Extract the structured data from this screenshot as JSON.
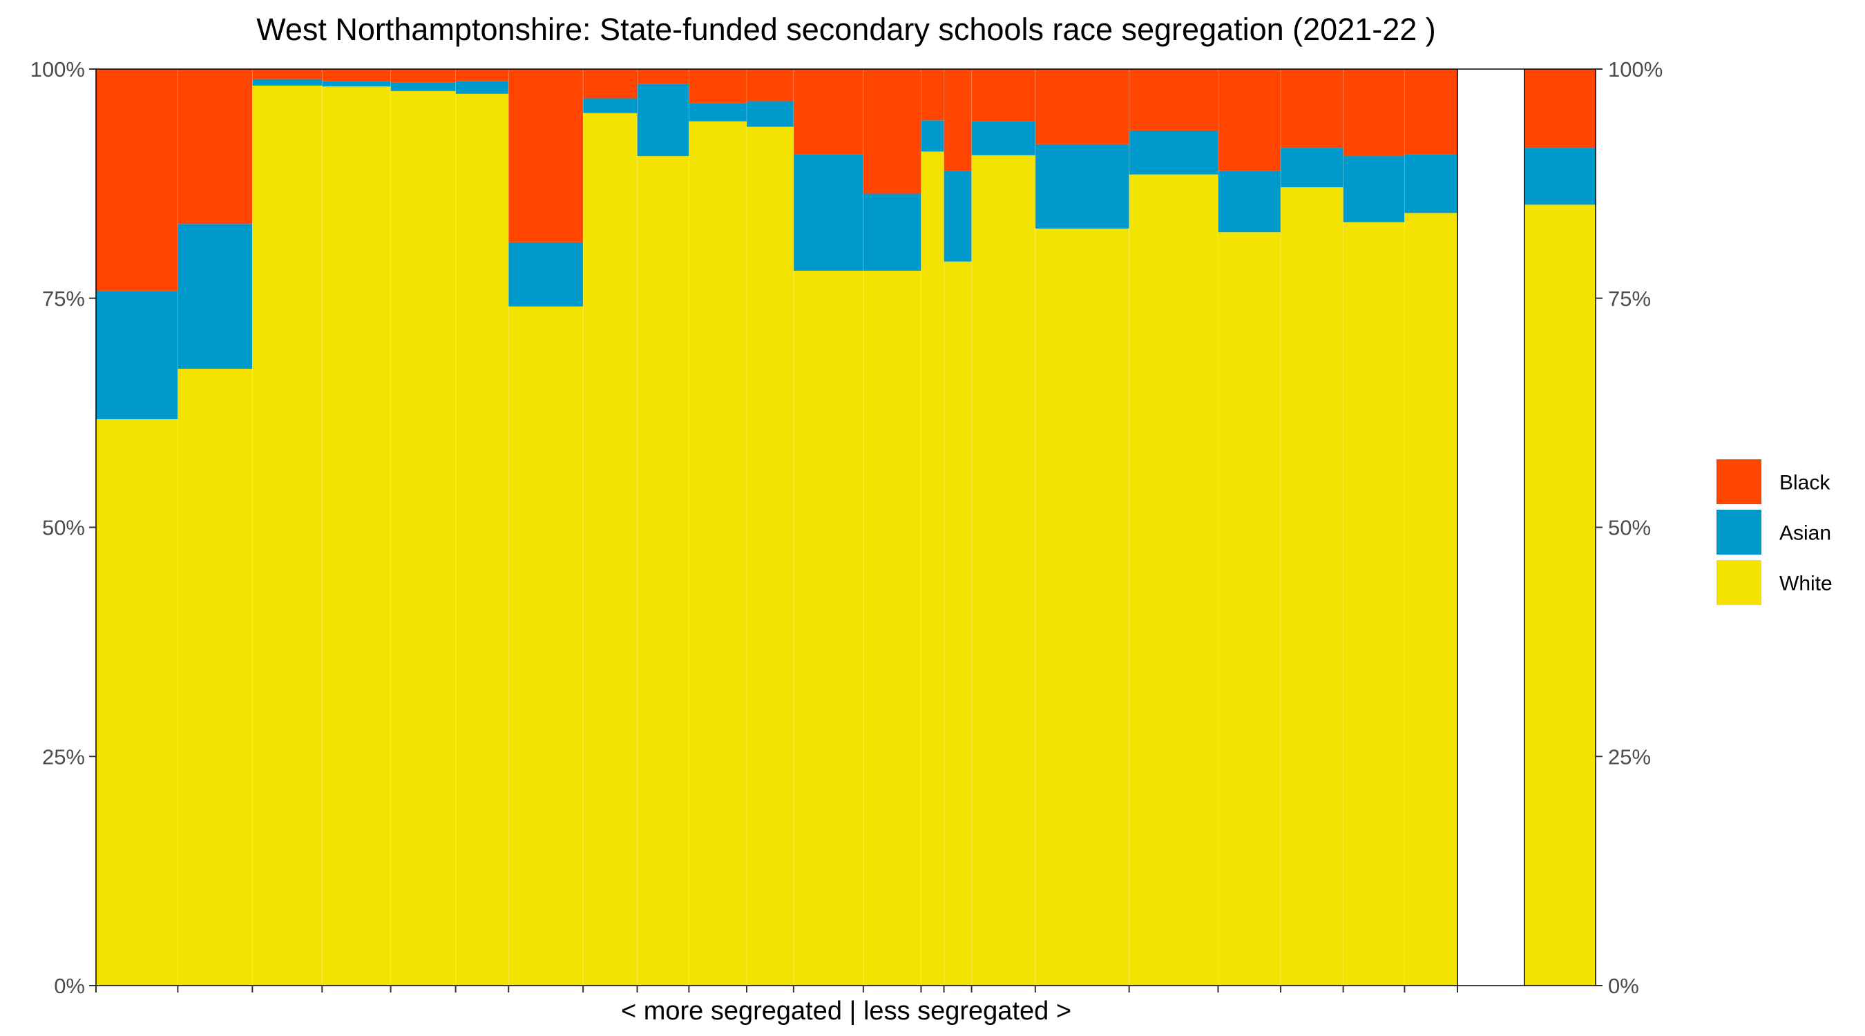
{
  "chart_data": {
    "type": "bar",
    "title": "West Northamptonshire: State-funded secondary schools race segregation (2021-22 )",
    "xlabel": "< more segregated | less segregated >",
    "ylabel": "",
    "ylim": [
      0,
      1
    ],
    "y_ticks": [
      "0%",
      "25%",
      "50%",
      "75%",
      "100%"
    ],
    "grid": false,
    "legend_position": "right",
    "series": [
      {
        "name": "Black",
        "color": "#FF4500"
      },
      {
        "name": "Asian",
        "color": "#0099CC"
      },
      {
        "name": "White",
        "color": "#F4E300"
      }
    ],
    "schools": [
      {
        "width": 68,
        "white": 0.618,
        "asian": 0.758
      },
      {
        "width": 62,
        "white": 0.673,
        "asian": 0.831
      },
      {
        "width": 58,
        "white": 0.982,
        "asian": 0.989
      },
      {
        "width": 57,
        "white": 0.981,
        "asian": 0.987
      },
      {
        "width": 54,
        "white": 0.976,
        "asian": 0.985
      },
      {
        "width": 44,
        "white": 0.973,
        "asian": 0.987
      },
      {
        "width": 62,
        "white": 0.741,
        "asian": 0.811
      },
      {
        "width": 45,
        "white": 0.952,
        "asian": 0.968
      },
      {
        "width": 43,
        "white": 0.905,
        "asian": 0.984
      },
      {
        "width": 48,
        "white": 0.943,
        "asian": 0.963
      },
      {
        "width": 39,
        "white": 0.937,
        "asian": 0.965
      },
      {
        "width": 58,
        "white": 0.78,
        "asian": 0.907
      },
      {
        "width": 48,
        "white": 0.78,
        "asian": 0.864
      },
      {
        "width": 19,
        "white": 0.91,
        "asian": 0.944
      },
      {
        "width": 23,
        "white": 0.79,
        "asian": 0.889
      },
      {
        "width": 53,
        "white": 0.906,
        "asian": 0.943
      },
      {
        "width": 78,
        "white": 0.826,
        "asian": 0.918
      },
      {
        "width": 74,
        "white": 0.885,
        "asian": 0.933
      },
      {
        "width": 52,
        "white": 0.822,
        "asian": 0.889
      },
      {
        "width": 52,
        "white": 0.871,
        "asian": 0.914
      },
      {
        "width": 51,
        "white": 0.833,
        "asian": 0.905
      },
      {
        "width": 44,
        "white": 0.843,
        "asian": 0.907
      }
    ],
    "overall": {
      "white": 0.852,
      "asian": 0.914
    }
  }
}
